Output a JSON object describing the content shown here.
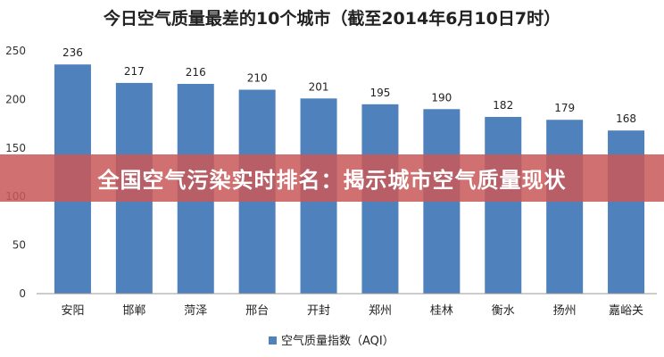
{
  "overlay": {
    "banner_text": "全国空气污染实时排名：揭示城市空气质量现状"
  },
  "colors": {
    "bar": "#4f81bd",
    "axis": "#999999",
    "banner": "#c85858"
  },
  "chart_data": {
    "type": "bar",
    "title": "今日空气质量最差的10个城市（截至2014年6月10日7时）",
    "categories": [
      "安阳",
      "邯郸",
      "菏泽",
      "邢台",
      "开封",
      "郑州",
      "桂林",
      "衡水",
      "扬州",
      "嘉峪关"
    ],
    "series": [
      {
        "name": "空气质量指数（AQI）",
        "values": [
          236,
          217,
          216,
          210,
          201,
          195,
          190,
          182,
          179,
          168
        ]
      }
    ],
    "ylim": [
      0,
      250
    ],
    "yticks": [
      0,
      50,
      100,
      150,
      200,
      250
    ],
    "grid": false,
    "legend": "bottom",
    "data_labels": true
  }
}
